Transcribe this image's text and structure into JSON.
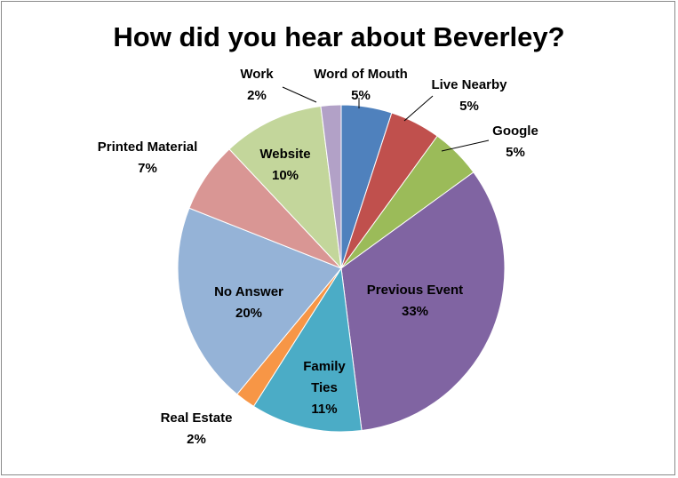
{
  "chart_data": {
    "type": "pie",
    "title": "How did you hear about Beverley?",
    "slices": [
      {
        "label": "Word of Mouth",
        "pct_label": "5%",
        "value": 5,
        "color": "#4f81bd"
      },
      {
        "label": "Live Nearby",
        "pct_label": "5%",
        "value": 5,
        "color": "#c0504d"
      },
      {
        "label": "Google",
        "pct_label": "5%",
        "value": 5,
        "color": "#9bbb59"
      },
      {
        "label": "Previous Event",
        "pct_label": "33%",
        "value": 33,
        "color": "#8064a2"
      },
      {
        "label": "Family Ties",
        "pct_label": "11%",
        "value": 11,
        "color": "#4bacc6"
      },
      {
        "label": "Real Estate",
        "pct_label": "2%",
        "value": 2,
        "color": "#f79646"
      },
      {
        "label": "No Answer",
        "pct_label": "20%",
        "value": 20,
        "color": "#95b3d7"
      },
      {
        "label": "Printed Material",
        "pct_label": "7%",
        "value": 7,
        "color": "#d99694"
      },
      {
        "label": "Website",
        "pct_label": "10%",
        "value": 10,
        "color": "#c3d69b"
      },
      {
        "label": "Work",
        "pct_label": "2%",
        "value": 2,
        "color": "#b2a1c7"
      }
    ]
  }
}
